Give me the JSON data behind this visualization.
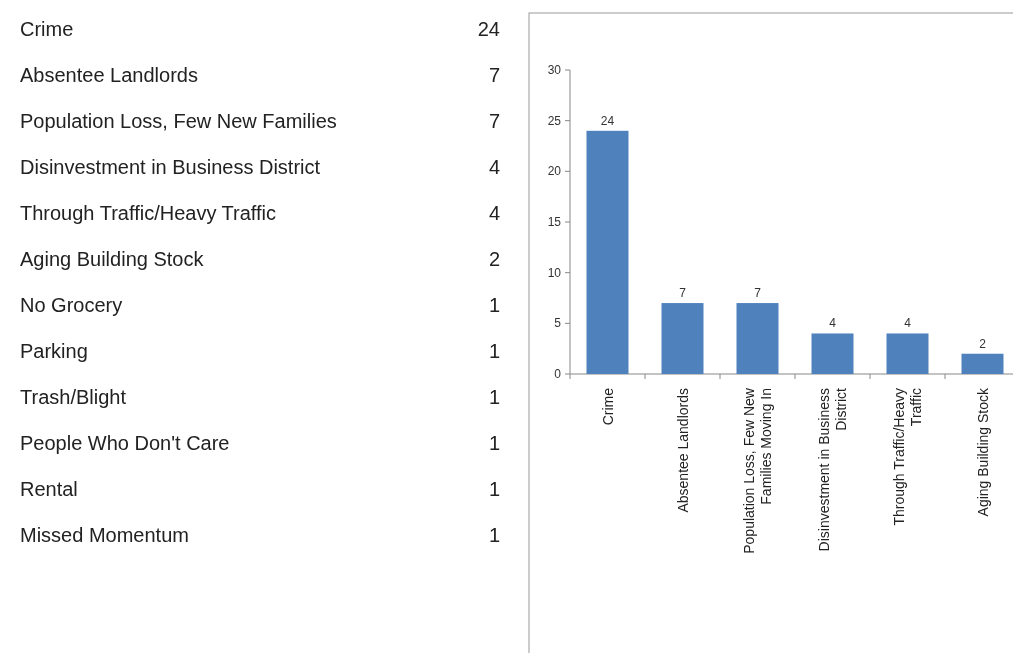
{
  "chart_data": [
    {
      "type": "other",
      "categories": [
        "Crime",
        "Absentee Landlords",
        "Population Loss, Few New Families",
        "Disinvestment in Business District",
        "Through Traffic/Heavy Traffic",
        "Aging Building Stock",
        "No Grocery",
        "Parking",
        "Trash/Blight",
        "People Who Don't Care",
        "Rental",
        "Missed Momentum"
      ],
      "values": [
        24,
        7,
        7,
        4,
        4,
        2,
        1,
        1,
        1,
        1,
        1,
        1
      ],
      "data_labels": true
    },
    {
      "type": "bar",
      "categories": [
        "Crime",
        "Absentee Landlords",
        "Population Loss, Few New Families Moving In",
        "Disinvestment in Business District",
        "Through Traffic/Heavy Traffic",
        "Aging Building Stock"
      ],
      "values": [
        24,
        7,
        7,
        4,
        4,
        2
      ],
      "color": "#4f81bd",
      "ylim": [
        0,
        30
      ],
      "yticks": [
        0,
        5,
        10,
        15,
        20,
        25,
        30
      ],
      "data_labels": true
    }
  ]
}
